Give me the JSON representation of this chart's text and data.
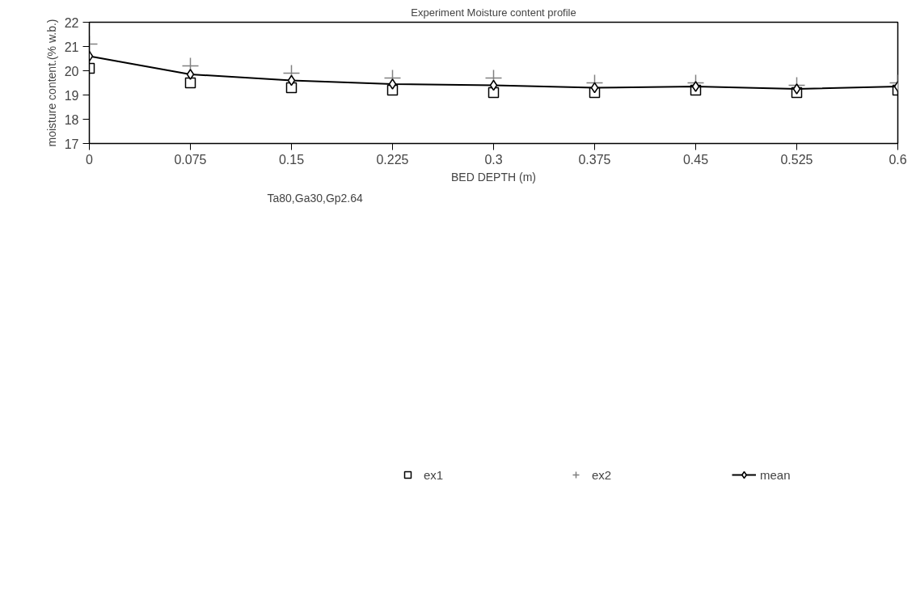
{
  "chart_data": {
    "type": "scatter",
    "title": "Experiment Moisture content profile",
    "xlabel": "BED DEPTH (m)",
    "ylabel": "moisture content.(% w.b.)",
    "annotations": [
      "Ta80,Ga30,Gp2.64"
    ],
    "x": [
      0,
      0.075,
      0.15,
      0.225,
      0.3,
      0.375,
      0.45,
      0.525,
      0.6
    ],
    "series": [
      {
        "name": "ex1",
        "marker": "square",
        "color": "#000000",
        "values": [
          20.1,
          19.5,
          19.3,
          19.2,
          19.1,
          19.1,
          19.2,
          19.1,
          19.2
        ]
      },
      {
        "name": "ex2",
        "marker": "cross",
        "color": "#808080",
        "values": [
          21.1,
          20.2,
          19.9,
          19.7,
          19.7,
          19.5,
          19.5,
          19.4,
          19.5
        ]
      },
      {
        "name": "mean",
        "type": "line",
        "marker": "diamond",
        "color": "#000000",
        "values": [
          20.6,
          19.85,
          19.6,
          19.45,
          19.4,
          19.3,
          19.35,
          19.25,
          19.35
        ]
      }
    ],
    "xlim": [
      0,
      0.6
    ],
    "ylim": [
      17,
      22
    ],
    "xticks": [
      0,
      0.075,
      0.15,
      0.225,
      0.3,
      0.375,
      0.45,
      0.525,
      0.6
    ],
    "yticks": [
      17,
      18,
      19,
      20,
      21,
      22
    ],
    "grid": false,
    "legend": "bottom",
    "line_style": "solid"
  }
}
